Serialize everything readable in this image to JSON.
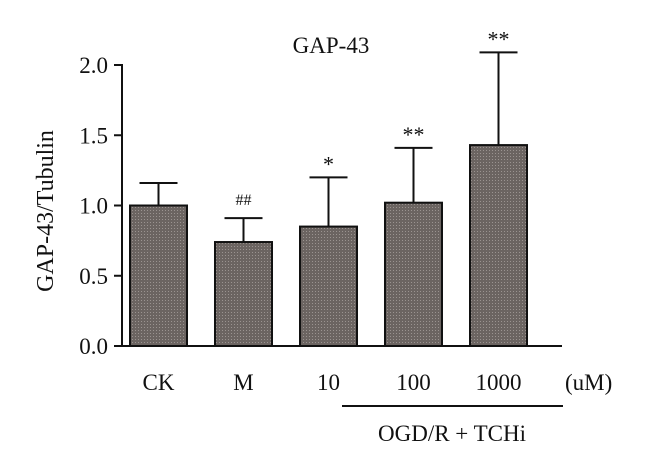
{
  "chart_data": {
    "type": "bar",
    "title": "GAP-43",
    "ylabel": "GAP-43/Tubulin",
    "xlabel": "",
    "categories": [
      "CK",
      "M",
      "10",
      "100",
      "1000"
    ],
    "values": [
      1.0,
      0.74,
      0.85,
      1.02,
      1.43
    ],
    "error_upper": [
      1.16,
      0.91,
      1.2,
      1.41,
      2.09
    ],
    "significance": [
      "",
      "##",
      "*",
      "**",
      "**"
    ],
    "ylim": [
      0.0,
      2.0
    ],
    "yticks": [
      "0.0",
      "0.5",
      "1.0",
      "1.5",
      "2.0"
    ],
    "unit_label": "(uM)",
    "group_label": "OGD/R + TCHi",
    "grid": false,
    "bar_color": "#6b6461",
    "axis_color": "#111111"
  }
}
